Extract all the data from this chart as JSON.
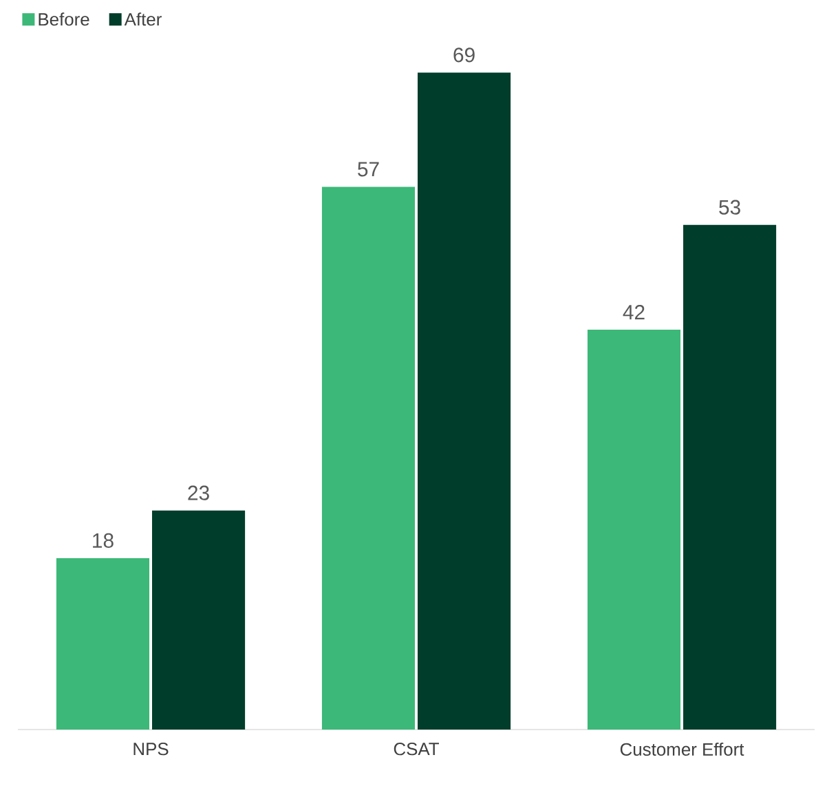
{
  "chart_data": {
    "type": "bar",
    "categories": [
      "NPS",
      "CSAT",
      "Customer Effort"
    ],
    "series": [
      {
        "name": "Before",
        "color": "#3cb878",
        "values": [
          18,
          57,
          42
        ]
      },
      {
        "name": "After",
        "color": "#003d2b",
        "values": [
          23,
          69,
          53
        ]
      }
    ],
    "data_labels": true,
    "legend": "top left"
  }
}
